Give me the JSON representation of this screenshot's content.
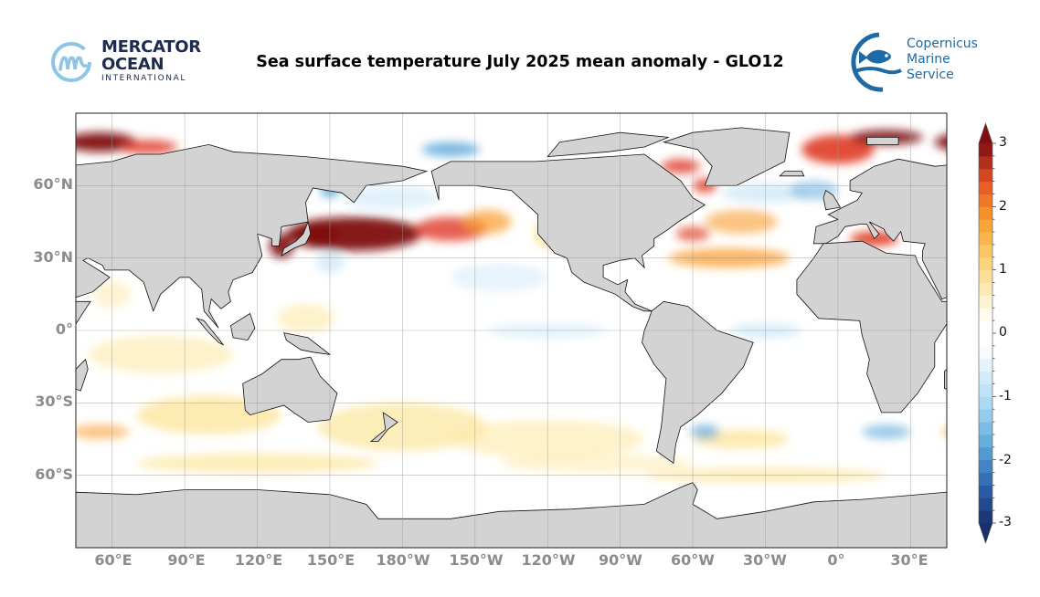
{
  "header": {
    "title": "Sea surface temperature July 2025 mean anomaly - GLO12",
    "left_logo": {
      "line1": "MERCATOR",
      "line2": "OCEAN",
      "line3": "INTERNATIONAL",
      "icon": "mercator-m-icon",
      "color": "#1e2b4f",
      "accent": "#8ec5e6"
    },
    "right_logo": {
      "line1": "Copernicus",
      "line2": "Marine Service",
      "icon": "fish-wave-icon",
      "color": "#1f6aa5"
    }
  },
  "map": {
    "projection": "plate-carree",
    "land_color": "#d3d3d3",
    "lat_labels": [
      "60°N",
      "30°N",
      "0°",
      "30°S",
      "60°S"
    ],
    "lon_labels": [
      "60°E",
      "90°E",
      "120°E",
      "150°E",
      "180°W",
      "150°W",
      "120°W",
      "90°W",
      "60°W",
      "30°W",
      "0°",
      "30°E"
    ],
    "gridlines": true
  },
  "colorbar": {
    "ticks": [
      "3",
      "2",
      "1",
      "0",
      "-1",
      "-2",
      "-3"
    ],
    "range": [
      -3,
      3
    ],
    "extend": "both",
    "colormap": "RdYlBu_r",
    "colors": {
      "max": "#7f0d12",
      "high": "#e03a25",
      "mid_high": "#f99d2c",
      "low_warm": "#fde9a8",
      "zero": "#ffffff",
      "low_cool": "#cfe9f7",
      "mid_low": "#5aa6d8",
      "min": "#1a2f6b"
    }
  }
}
